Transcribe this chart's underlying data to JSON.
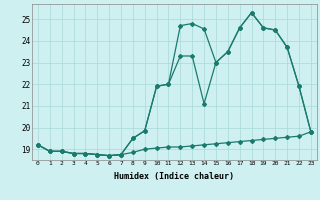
{
  "xlabel": "Humidex (Indice chaleur)",
  "bg_color": "#cff0f0",
  "line_color": "#1a7a6e",
  "ylim": [
    18.5,
    25.7
  ],
  "xlim": [
    -0.5,
    23.5
  ],
  "yticks": [
    19,
    20,
    21,
    22,
    23,
    24,
    25
  ],
  "xticks": [
    0,
    1,
    2,
    3,
    4,
    5,
    6,
    7,
    8,
    9,
    10,
    11,
    12,
    13,
    14,
    15,
    16,
    17,
    18,
    19,
    20,
    21,
    22,
    23
  ],
  "line1_x": [
    0,
    1,
    2,
    3,
    4,
    5,
    6,
    7,
    8,
    9,
    10,
    11,
    12,
    13,
    14,
    15,
    16,
    17,
    18,
    19,
    20,
    21,
    22,
    23
  ],
  "line1_y": [
    19.2,
    18.9,
    18.9,
    18.8,
    18.8,
    18.75,
    18.7,
    18.75,
    18.85,
    19.0,
    19.05,
    19.1,
    19.1,
    19.15,
    19.2,
    19.25,
    19.3,
    19.35,
    19.4,
    19.45,
    19.5,
    19.55,
    19.6,
    19.8
  ],
  "line2_x": [
    0,
    1,
    2,
    3,
    4,
    5,
    6,
    7,
    8,
    9,
    10,
    11,
    12,
    13,
    14,
    15,
    16,
    17,
    18,
    19,
    20,
    21,
    22,
    23
  ],
  "line2_y": [
    19.2,
    18.9,
    18.9,
    18.8,
    18.8,
    18.75,
    18.7,
    18.75,
    19.5,
    19.85,
    21.9,
    22.0,
    24.7,
    24.8,
    24.55,
    23.0,
    23.5,
    24.6,
    25.3,
    24.6,
    24.5,
    23.7,
    21.9,
    19.8
  ],
  "line3_x": [
    0,
    1,
    2,
    3,
    4,
    5,
    6,
    7,
    8,
    9,
    10,
    11,
    12,
    13,
    14,
    15,
    16,
    17,
    18,
    19,
    20,
    21,
    22,
    23
  ],
  "line3_y": [
    19.2,
    18.9,
    18.9,
    18.8,
    18.8,
    18.75,
    18.7,
    18.75,
    19.5,
    19.85,
    21.9,
    22.0,
    23.3,
    23.3,
    21.1,
    23.0,
    23.5,
    24.6,
    25.3,
    24.6,
    24.5,
    23.7,
    21.9,
    19.8
  ]
}
